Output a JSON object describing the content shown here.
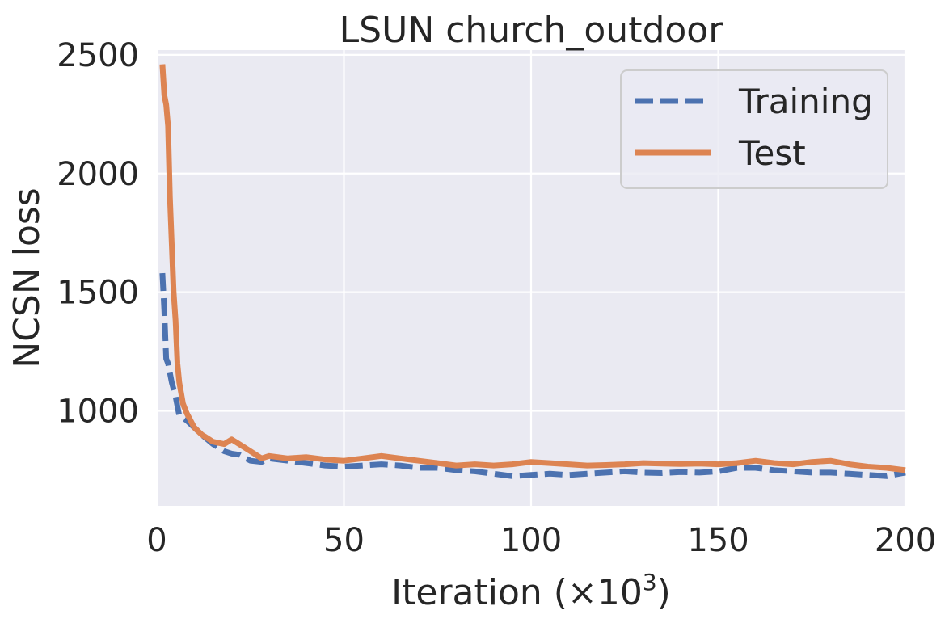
{
  "chart_data": {
    "type": "line",
    "title": "LSUN church_outdoor",
    "xlabel": "Iteration (×10",
    "xlabel_sup": "3",
    "xlabel_close": ")",
    "ylabel": "NCSN loss",
    "xlim": [
      0,
      200
    ],
    "ylim": [
      600,
      2520
    ],
    "xticks": [
      0,
      50,
      100,
      150,
      200
    ],
    "yticks": [
      1000,
      1500,
      2000,
      2500
    ],
    "grid": true,
    "legend_placement": "top-right",
    "background_color": "#eaeaf2",
    "series": [
      {
        "name": "Training",
        "style": "dashed",
        "color": "#4c72b0",
        "x": [
          1.5,
          2,
          2.5,
          3,
          4,
          5,
          6,
          8,
          10,
          12,
          15,
          18,
          20,
          22,
          25,
          28,
          30,
          35,
          40,
          45,
          50,
          55,
          60,
          65,
          70,
          75,
          80,
          85,
          90,
          95,
          100,
          105,
          110,
          115,
          120,
          125,
          130,
          135,
          140,
          145,
          150,
          155,
          160,
          165,
          170,
          175,
          180,
          185,
          190,
          195,
          200
        ],
        "y": [
          1580,
          1420,
          1220,
          1200,
          1120,
          1060,
          980,
          960,
          930,
          900,
          860,
          830,
          820,
          815,
          790,
          785,
          800,
          790,
          780,
          770,
          765,
          770,
          775,
          770,
          760,
          760,
          750,
          745,
          735,
          725,
          730,
          735,
          730,
          735,
          740,
          745,
          740,
          738,
          742,
          740,
          745,
          760,
          760,
          750,
          745,
          740,
          740,
          735,
          730,
          725,
          740
        ]
      },
      {
        "name": "Test",
        "style": "solid",
        "color": "#dd8452",
        "x": [
          1.5,
          2,
          2.5,
          3,
          3.5,
          4,
          4.5,
          5,
          5.5,
          6,
          7,
          8,
          10,
          12,
          15,
          18,
          20,
          22,
          25,
          28,
          30,
          35,
          40,
          45,
          50,
          55,
          60,
          65,
          70,
          75,
          80,
          85,
          90,
          95,
          100,
          105,
          110,
          115,
          120,
          125,
          130,
          135,
          140,
          145,
          150,
          155,
          160,
          165,
          170,
          175,
          180,
          185,
          190,
          195,
          200
        ],
        "y": [
          2460,
          2330,
          2290,
          2200,
          1900,
          1700,
          1500,
          1380,
          1200,
          1120,
          1030,
          990,
          930,
          900,
          870,
          860,
          880,
          860,
          830,
          800,
          810,
          800,
          805,
          795,
          790,
          800,
          810,
          800,
          790,
          780,
          770,
          775,
          770,
          775,
          785,
          780,
          775,
          770,
          772,
          775,
          780,
          778,
          776,
          778,
          775,
          780,
          790,
          780,
          775,
          785,
          790,
          775,
          765,
          760,
          750
        ]
      }
    ]
  }
}
